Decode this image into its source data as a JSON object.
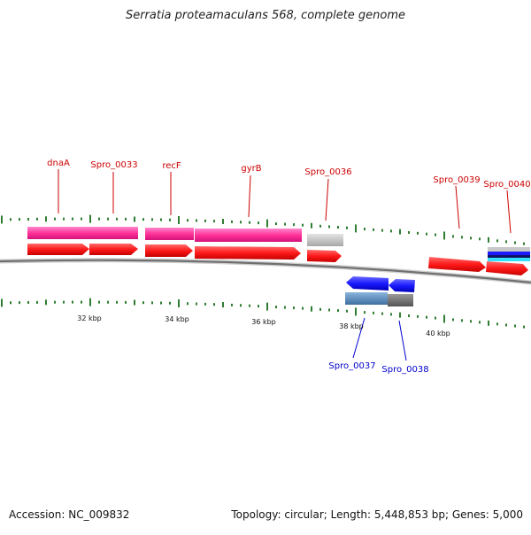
{
  "title": "Serratia proteamaculans 568, complete genome",
  "footer": {
    "accession": "Accession: NC_009832",
    "topology": "Topology: circular; Length: 5,448,853 bp; Genes: 5,000"
  },
  "colors": {
    "backbone": "#8a8a8a",
    "tick": "#2e7d32",
    "forward_gene": "#ff1a1a",
    "reverse_gene": "#1a1aff",
    "feature_pink": "#ff3399",
    "feature_gray": "#c8c8c8",
    "feature_steel": "#5b8fbf",
    "forward_label": "#cc0000",
    "reverse_label": "#0000cc"
  },
  "scale_labels": [
    "32 kbp",
    "34 kbp",
    "36 kbp",
    "38 kbp",
    "40 kbp"
  ],
  "gene_labels": {
    "forward": [
      "dnaA",
      "Spro_0033",
      "recF",
      "gyrB",
      "Spro_0036",
      "Spro_0039",
      "Spro_0040"
    ],
    "reverse": [
      "Spro_0037",
      "Spro_0038"
    ]
  }
}
